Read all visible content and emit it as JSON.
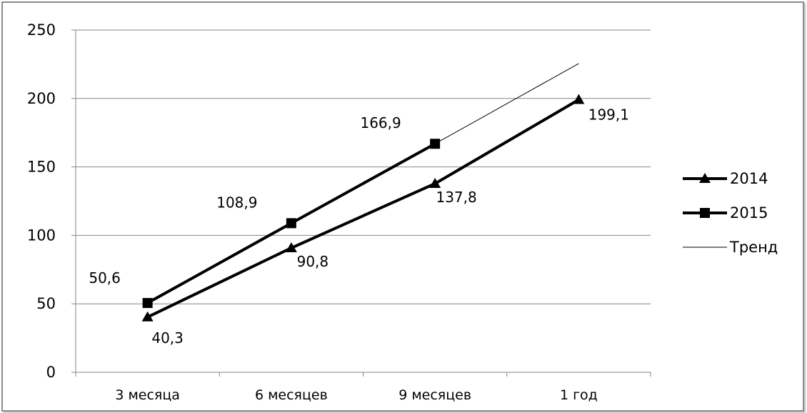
{
  "chart_data": {
    "type": "line",
    "title": "",
    "xlabel": "",
    "ylabel": "",
    "ylim": [
      0,
      250
    ],
    "yticks": [
      "0",
      "50",
      "100",
      "150",
      "200",
      "250"
    ],
    "categories": [
      "3 месяца",
      "6 месяцев",
      "9 месяцев",
      "1 год"
    ],
    "grid": true,
    "legend_position": "right",
    "series": [
      {
        "name": "2014",
        "marker": "triangle",
        "color": "#000000",
        "values": [
          40.3,
          90.8,
          137.8,
          199.1
        ],
        "labels": [
          "40,3",
          "90,8",
          "137,8",
          "199,1"
        ]
      },
      {
        "name": "2015",
        "marker": "square",
        "color": "#000000",
        "values": [
          50.6,
          108.9,
          166.9,
          null
        ],
        "labels": [
          "50,6",
          "108,9",
          "166,9",
          ""
        ]
      },
      {
        "name": "Тренд",
        "marker": "none",
        "color": "#000000",
        "values": [
          null,
          null,
          166.9,
          225.5
        ],
        "labels": [
          "",
          "",
          "",
          ""
        ]
      }
    ]
  }
}
